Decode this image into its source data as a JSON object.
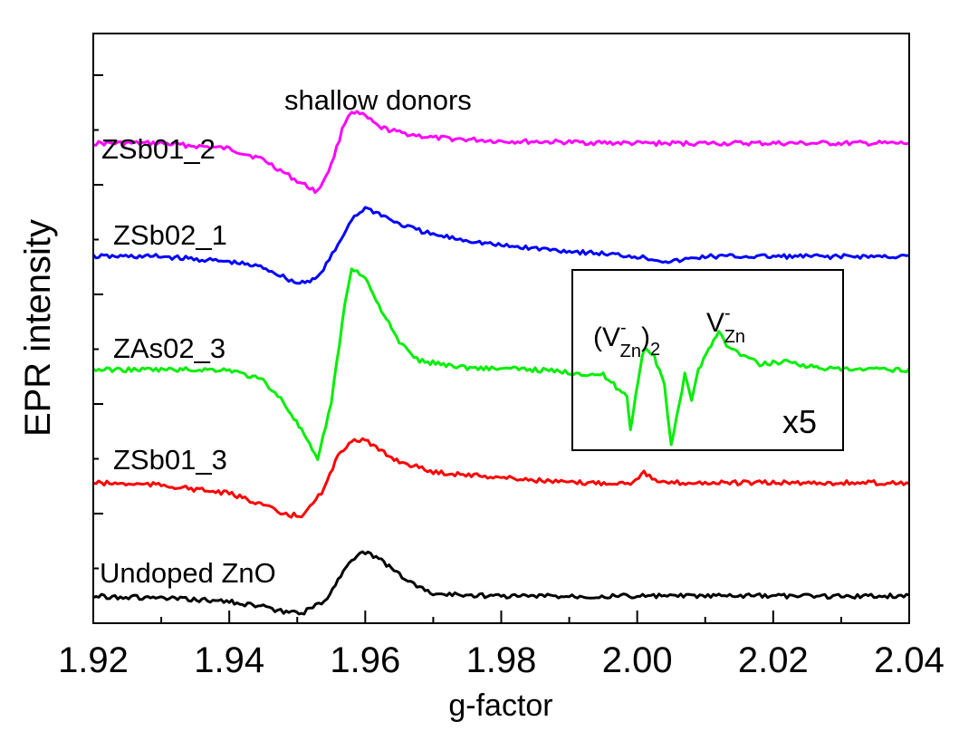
{
  "chart_data": {
    "type": "line",
    "xlabel": "g-factor",
    "ylabel": "EPR intensity",
    "xlim": [
      1.92,
      2.04
    ],
    "xticks": [
      "1.92",
      "1.94",
      "1.96",
      "1.98",
      "2.00",
      "2.02",
      "2.04"
    ],
    "yticks_labeled": false,
    "grid": false,
    "series": [
      {
        "name": "ZSb01_2",
        "color": "#ff00ff",
        "offset": 4.2,
        "x": [
          1.92,
          1.93,
          1.94,
          1.945,
          1.95,
          1.953,
          1.955,
          1.957,
          1.958,
          1.96,
          1.962,
          1.965,
          1.97,
          1.98,
          2.0,
          2.02,
          2.04
        ],
        "y": [
          0.0,
          0.0,
          -0.05,
          -0.15,
          -0.35,
          -0.45,
          -0.2,
          0.2,
          0.3,
          0.25,
          0.15,
          0.1,
          0.05,
          0.02,
          0.0,
          0.0,
          0.0
        ]
      },
      {
        "name": "ZSb02_1",
        "color": "#0000ff",
        "offset": 3.15,
        "x": [
          1.92,
          1.93,
          1.94,
          1.945,
          1.95,
          1.953,
          1.956,
          1.958,
          1.96,
          1.962,
          1.965,
          1.97,
          1.98,
          1.99,
          2.0,
          2.005,
          2.01,
          2.02,
          2.04
        ],
        "y": [
          0.0,
          0.0,
          -0.05,
          -0.1,
          -0.25,
          -0.2,
          0.1,
          0.35,
          0.45,
          0.4,
          0.3,
          0.2,
          0.1,
          0.05,
          0.0,
          -0.05,
          0.0,
          0.0,
          0.0
        ]
      },
      {
        "name": "ZAs02_3",
        "color": "#00ee00",
        "offset": 2.1,
        "x": [
          1.92,
          1.93,
          1.94,
          1.945,
          1.948,
          1.951,
          1.953,
          1.955,
          1.957,
          1.958,
          1.96,
          1.962,
          1.965,
          1.968,
          1.975,
          1.985,
          1.995,
          1.9985,
          1.999,
          2.0005,
          2.001,
          2.0025,
          2.004,
          2.005,
          2.007,
          2.008,
          2.009,
          2.0105,
          2.012,
          2.0135,
          2.016,
          2.018,
          2.022,
          2.026,
          2.03,
          2.04
        ],
        "y": [
          0.0,
          0.0,
          0.0,
          -0.1,
          -0.3,
          -0.6,
          -0.85,
          -0.3,
          0.6,
          0.95,
          0.85,
          0.6,
          0.25,
          0.08,
          0.02,
          0.0,
          -0.05,
          -0.25,
          -0.55,
          0.05,
          0.2,
          0.12,
          -0.15,
          -0.7,
          -0.05,
          -0.3,
          0.0,
          0.2,
          0.35,
          0.2,
          0.12,
          0.05,
          0.08,
          0.02,
          0.0,
          0.0
        ]
      },
      {
        "name": "ZSb01_3",
        "color": "#ff0000",
        "offset": 1.05,
        "x": [
          1.92,
          1.93,
          1.94,
          1.945,
          1.948,
          1.951,
          1.954,
          1.956,
          1.958,
          1.96,
          1.962,
          1.965,
          1.97,
          1.98,
          1.99,
          1.999,
          2.001,
          2.003,
          2.01,
          2.04
        ],
        "y": [
          0.0,
          -0.02,
          -0.1,
          -0.2,
          -0.3,
          -0.3,
          -0.05,
          0.25,
          0.4,
          0.4,
          0.3,
          0.2,
          0.1,
          0.05,
          0.0,
          0.0,
          0.1,
          0.0,
          0.0,
          0.0
        ]
      },
      {
        "name": "Undoped ZnO",
        "color": "#000000",
        "offset": 0.0,
        "x": [
          1.92,
          1.93,
          1.94,
          1.945,
          1.948,
          1.951,
          1.954,
          1.956,
          1.958,
          1.96,
          1.962,
          1.965,
          1.968,
          1.97,
          1.98,
          2.0,
          2.04
        ],
        "y": [
          0.0,
          -0.02,
          -0.05,
          -0.1,
          -0.15,
          -0.15,
          -0.05,
          0.15,
          0.35,
          0.4,
          0.35,
          0.2,
          0.08,
          0.02,
          0.0,
          0.0,
          0.0
        ]
      }
    ],
    "annotations": [
      {
        "text": "shallow donors"
      }
    ],
    "inset": {
      "labels": [
        "(V",
        "-",
        "Zn",
        ")",
        "2",
        "V",
        "-",
        "Zn"
      ],
      "scale_text": "x5",
      "scale_color": "#22dd22"
    }
  }
}
